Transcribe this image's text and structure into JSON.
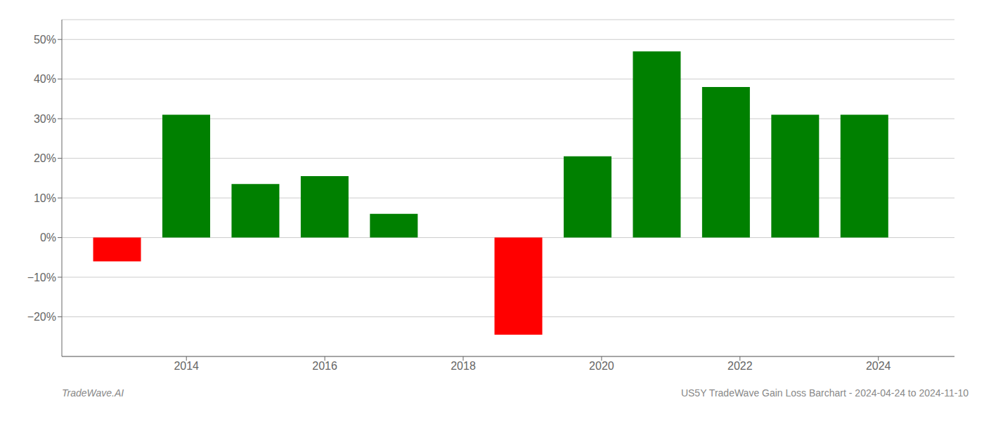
{
  "chart_data": {
    "type": "bar",
    "title": "US5Y TradeWave Gain Loss Barchart - 2024-04-24 to 2024-11-10",
    "annotations": [
      "TradeWave.AI"
    ],
    "x": [
      2013,
      2014,
      2015,
      2016,
      2017,
      2018.8,
      2019.8,
      2020.8,
      2021.8,
      2022.8,
      2023.8
    ],
    "values": [
      -6.0,
      31.0,
      13.5,
      15.5,
      6.0,
      -24.5,
      20.5,
      47.0,
      38.0,
      31.0,
      31.0
    ],
    "colors": [
      "#ff0000",
      "#008000",
      "#008000",
      "#008000",
      "#008000",
      "#ff0000",
      "#008000",
      "#008000",
      "#008000",
      "#008000",
      "#008000"
    ],
    "xlim": [
      2012.2,
      2025.1
    ],
    "xticks": [
      2014,
      2016,
      2018,
      2020,
      2022,
      2024
    ],
    "ylim": [
      -30,
      55
    ],
    "yticks": [
      {
        "value": -20,
        "label": "−20%"
      },
      {
        "value": -10,
        "label": "−10%"
      },
      {
        "value": 0,
        "label": "0%"
      },
      {
        "value": 10,
        "label": "10%"
      },
      {
        "value": 20,
        "label": "20%"
      },
      {
        "value": 30,
        "label": "30%"
      },
      {
        "value": 40,
        "label": "40%"
      },
      {
        "value": 50,
        "label": "50%"
      }
    ],
    "grid": true
  }
}
